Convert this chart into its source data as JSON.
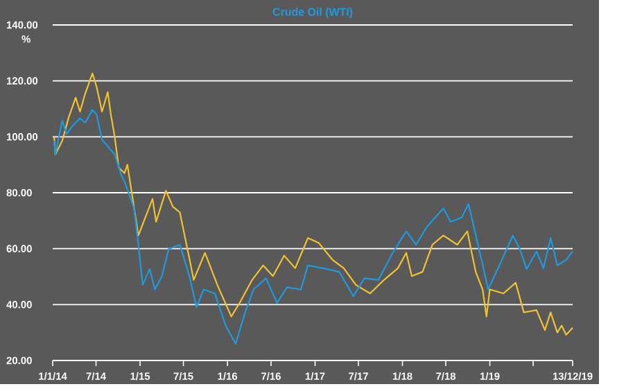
{
  "chart_data": {
    "type": "line",
    "ylabel": "%",
    "xlim": [
      "2014-01-01",
      "2019-12-13"
    ],
    "xticks": [
      {
        "value": "2014-01-01",
        "label": "1/1/14"
      },
      {
        "value": "2014-07-01",
        "label": "7/14"
      },
      {
        "value": "2015-01-01",
        "label": "1/15"
      },
      {
        "value": "2015-07-01",
        "label": "7/15"
      },
      {
        "value": "2016-01-01",
        "label": "1/16"
      },
      {
        "value": "2016-07-01",
        "label": "7/16"
      },
      {
        "value": "2017-01-01",
        "label": "1/17"
      },
      {
        "value": "2017-07-01",
        "label": "7/17"
      },
      {
        "value": "2018-01-01",
        "label": "1/18"
      },
      {
        "value": "2018-07-01",
        "label": "7/18"
      },
      {
        "value": "2019-01-01",
        "label": "1/19"
      },
      {
        "value": "2019-07-01",
        "label": null
      },
      {
        "value": "2019-12-13",
        "label": "13/12/19"
      }
    ],
    "ylim": [
      20,
      140
    ],
    "yticks": [
      {
        "value": 20,
        "label": "20.00"
      },
      {
        "value": 40,
        "label": "40.00"
      },
      {
        "value": 60,
        "label": "60.00"
      },
      {
        "value": 80,
        "label": "80.00"
      },
      {
        "value": 100,
        "label": "100.00"
      },
      {
        "value": 120,
        "label": "120.00"
      },
      {
        "value": 140,
        "label": "140.00"
      }
    ],
    "grid": "y",
    "legend": "top",
    "series": [
      {
        "color": "#f2c230",
        "x": [
          "2014-01-07",
          "2014-01-12",
          "2014-02-10",
          "2014-03-09",
          "2014-04-07",
          "2014-04-25",
          "2014-05-17",
          "2014-06-16",
          "2014-07-03",
          "2014-07-26",
          "2014-08-19",
          "2014-09-01",
          "2014-09-17",
          "2014-10-04",
          "2014-10-28",
          "2014-11-09",
          "2014-11-26",
          "2014-12-25",
          "2015-02-22",
          "2015-03-09",
          "2015-04-19",
          "2015-05-18",
          "2015-06-16",
          "2015-07-26",
          "2015-08-13",
          "2015-09-29",
          "2015-11-20",
          "2016-01-17",
          "2016-02-21",
          "2016-04-13",
          "2016-05-29",
          "2016-07-09",
          "2016-08-25",
          "2016-10-10",
          "2016-12-02",
          "2017-01-17",
          "2017-03-15",
          "2017-05-01",
          "2017-06-21",
          "2017-08-19",
          "2017-10-16",
          "2017-12-13",
          "2018-01-17",
          "2018-02-09",
          "2018-03-26",
          "2018-05-06",
          "2018-06-21",
          "2018-08-18",
          "2018-09-29",
          "2018-11-03",
          "2018-12-02",
          "2018-12-18",
          "2019-01-01",
          "2019-02-27",
          "2019-04-19",
          "2019-05-23",
          "2019-07-15",
          "2019-08-19",
          "2019-09-12",
          "2019-10-10",
          "2019-10-28",
          "2019-11-16",
          "2019-12-13"
        ],
        "values": [
          100,
          93.7,
          98.6,
          107,
          114,
          109,
          115.5,
          122.7,
          118,
          109,
          116,
          108,
          100,
          89,
          87,
          90,
          80.7,
          64.7,
          77.8,
          69.6,
          80.7,
          75,
          73,
          56.5,
          48.8,
          58.5,
          47,
          35.7,
          40.6,
          48.8,
          54,
          50.2,
          57.5,
          53,
          63.8,
          62,
          56,
          53,
          47,
          44,
          48.8,
          53,
          58.5,
          50.2,
          51.7,
          61.4,
          64.7,
          61.4,
          66.2,
          51.7,
          45.4,
          35.7,
          45.4,
          44,
          47.8,
          37.2,
          38,
          30.9,
          37.2,
          30,
          32.5,
          29.2,
          31.7
        ]
      },
      {
        "name": "Crude Oil (WTI)",
        "color": "#1e9be0",
        "x": [
          "2014-01-07",
          "2014-01-12",
          "2014-02-10",
          "2014-02-28",
          "2014-03-26",
          "2014-04-25",
          "2014-05-17",
          "2014-06-16",
          "2014-07-03",
          "2014-07-26",
          "2014-08-25",
          "2014-09-17",
          "2014-10-16",
          "2014-10-28",
          "2014-12-07",
          "2014-12-25",
          "2015-01-12",
          "2015-02-10",
          "2015-03-04",
          "2015-04-02",
          "2015-05-01",
          "2015-06-16",
          "2015-07-26",
          "2015-08-25",
          "2015-09-23",
          "2015-11-09",
          "2015-12-25",
          "2016-02-04",
          "2016-03-15",
          "2016-04-19",
          "2016-06-10",
          "2016-07-26",
          "2016-09-06",
          "2016-11-03",
          "2016-12-02",
          "2017-02-03",
          "2017-04-12",
          "2017-06-10",
          "2017-07-26",
          "2017-09-23",
          "2017-11-21",
          "2018-01-17",
          "2018-02-27",
          "2018-04-13",
          "2018-06-21",
          "2018-07-21",
          "2018-09-06",
          "2018-10-04",
          "2018-11-26",
          "2018-12-25",
          "2019-02-10",
          "2019-04-07",
          "2019-05-06",
          "2019-06-04",
          "2019-07-15",
          "2019-08-13",
          "2019-09-12",
          "2019-10-10",
          "2019-11-16",
          "2019-12-13"
        ],
        "values": [
          98.6,
          93.7,
          105.8,
          101,
          104,
          106.6,
          105,
          109.6,
          108,
          99,
          96,
          93.7,
          86,
          84,
          74.4,
          61.4,
          47,
          52.7,
          45.4,
          50.2,
          59.9,
          61.4,
          50.2,
          39,
          45.4,
          44,
          32.4,
          26,
          37.2,
          45.4,
          49.4,
          40.6,
          46.2,
          45.4,
          54,
          53,
          51.7,
          43,
          49.4,
          48.8,
          58.5,
          66.2,
          61.4,
          67.8,
          74.4,
          69.6,
          71.2,
          76,
          56.5,
          45.4,
          54,
          64.7,
          59.9,
          52.7,
          59,
          53,
          63.8,
          54,
          56,
          59
        ]
      }
    ]
  }
}
